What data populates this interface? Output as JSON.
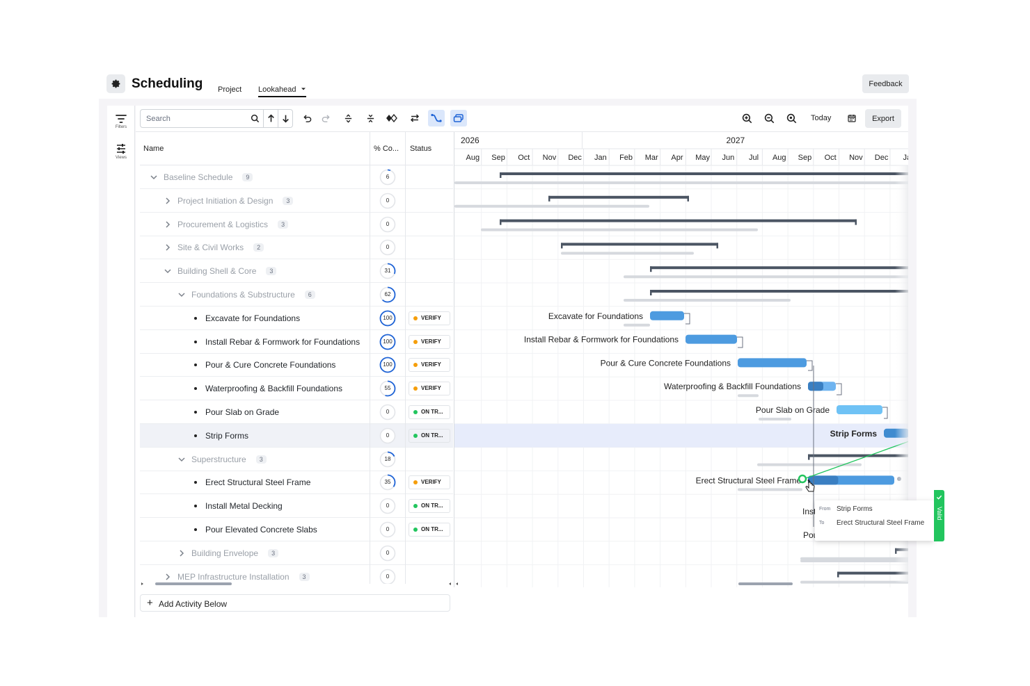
{
  "header": {
    "title": "Scheduling",
    "tabs": [
      {
        "label": "Project"
      },
      {
        "label": "Lookahead"
      }
    ],
    "feedback_label": "Feedback"
  },
  "rail": {
    "filters_label": "Filters",
    "views_label": "Views"
  },
  "toolbar": {
    "search_placeholder": "Search",
    "today_label": "Today",
    "export_label": "Export"
  },
  "grid": {
    "columns": {
      "name": "Name",
      "pct": "% Co...",
      "status": "Status"
    },
    "rows": [
      {
        "name": "Baseline Schedule",
        "count": "9",
        "pct": "6",
        "pct_value": 6,
        "level": 0,
        "expander": "open",
        "grey": true,
        "status": ""
      },
      {
        "name": "Project Initiation & Design",
        "count": "3",
        "pct": "0",
        "pct_value": 0,
        "level": 1,
        "expander": "closed",
        "grey": true,
        "status": ""
      },
      {
        "name": "Procurement & Logistics",
        "count": "3",
        "pct": "0",
        "pct_value": 0,
        "level": 1,
        "expander": "closed",
        "grey": true,
        "status": ""
      },
      {
        "name": "Site & Civil Works",
        "count": "2",
        "pct": "0",
        "pct_value": 0,
        "level": 1,
        "expander": "closed",
        "grey": true,
        "status": ""
      },
      {
        "name": "Building Shell & Core",
        "count": "3",
        "pct": "31",
        "pct_value": 31,
        "level": 1,
        "expander": "open",
        "grey": true,
        "status": ""
      },
      {
        "name": "Foundations & Substructure",
        "count": "6",
        "pct": "62",
        "pct_value": 62,
        "level": 2,
        "expander": "open",
        "grey": true,
        "status": ""
      },
      {
        "name": "Excavate for Foundations",
        "count": "",
        "pct": "100",
        "pct_value": 100,
        "level": 3,
        "expander": "none",
        "grey": false,
        "status": "VERIFY"
      },
      {
        "name": "Install Rebar & Formwork for Foundations",
        "count": "",
        "pct": "100",
        "pct_value": 100,
        "level": 3,
        "expander": "none",
        "grey": false,
        "status": "VERIFY"
      },
      {
        "name": "Pour & Cure Concrete Foundations",
        "count": "",
        "pct": "100",
        "pct_value": 100,
        "level": 3,
        "expander": "none",
        "grey": false,
        "status": "VERIFY"
      },
      {
        "name": "Waterproofing & Backfill Foundations",
        "count": "",
        "pct": "55",
        "pct_value": 55,
        "level": 3,
        "expander": "none",
        "grey": false,
        "status": "VERIFY"
      },
      {
        "name": "Pour Slab on Grade",
        "count": "",
        "pct": "0",
        "pct_value": 0,
        "level": 3,
        "expander": "none",
        "grey": false,
        "status": "ON TR..."
      },
      {
        "name": "Strip Forms",
        "count": "",
        "pct": "0",
        "pct_value": 0,
        "level": 3,
        "expander": "none",
        "grey": false,
        "status": "ON TR...",
        "highlight": true
      },
      {
        "name": "Superstructure",
        "count": "3",
        "pct": "18",
        "pct_value": 18,
        "level": 2,
        "expander": "open",
        "grey": true,
        "status": ""
      },
      {
        "name": "Erect Structural Steel Frame",
        "count": "",
        "pct": "35",
        "pct_value": 35,
        "level": 3,
        "expander": "none",
        "grey": false,
        "status": "VERIFY"
      },
      {
        "name": "Install Metal Decking",
        "count": "",
        "pct": "0",
        "pct_value": 0,
        "level": 3,
        "expander": "none",
        "grey": false,
        "status": "ON TR..."
      },
      {
        "name": "Pour Elevated Concrete Slabs",
        "count": "",
        "pct": "0",
        "pct_value": 0,
        "level": 3,
        "expander": "none",
        "grey": false,
        "status": "ON TR..."
      },
      {
        "name": "Building Envelope",
        "count": "3",
        "pct": "0",
        "pct_value": 0,
        "level": 2,
        "expander": "closed",
        "grey": true,
        "status": ""
      },
      {
        "name": "MEP Infrastructure Installation",
        "count": "3",
        "pct": "0",
        "pct_value": 0,
        "level": 1,
        "expander": "closed",
        "grey": true,
        "status": ""
      }
    ],
    "add_activity_label": "Add Activity Below"
  },
  "timeline": {
    "years": [
      {
        "label": "2026",
        "start_month": 0
      },
      {
        "label": "2027",
        "start_month": 5
      }
    ],
    "months": [
      "Aug",
      "Sep",
      "Oct",
      "Nov",
      "Dec",
      "Jan",
      "Feb",
      "Mar",
      "Apr",
      "May",
      "Jun",
      "Jul",
      "Aug",
      "Sep",
      "Oct",
      "Nov",
      "Dec",
      "Ja"
    ],
    "task_labels": {
      "excavate": "Excavate for Foundations",
      "rebar": "Install Rebar & Formwork for Foundations",
      "pour": "Pour & Cure Concrete Foundations",
      "waterproof": "Waterproofing & Backfill Foundations",
      "slab": "Pour Slab on Grade",
      "strip": "Strip Forms",
      "steel": "Erect Structural Steel Frame",
      "inst_partial": "Inst",
      "pou_partial": "Pou"
    }
  },
  "link_tooltip": {
    "from_key": "From",
    "from_value": "Strip Forms",
    "to_key": "To",
    "to_value": "Erect Structural Steel Frame",
    "valid_label": "Valid"
  },
  "colors": {
    "accent_blue": "#1e63d6",
    "bar_blue": "#4d9be0",
    "summary_bar": "#4b5563",
    "verify_dot": "#f59e0b",
    "on_track_dot": "#22c55e",
    "valid_green": "#22c55e"
  }
}
